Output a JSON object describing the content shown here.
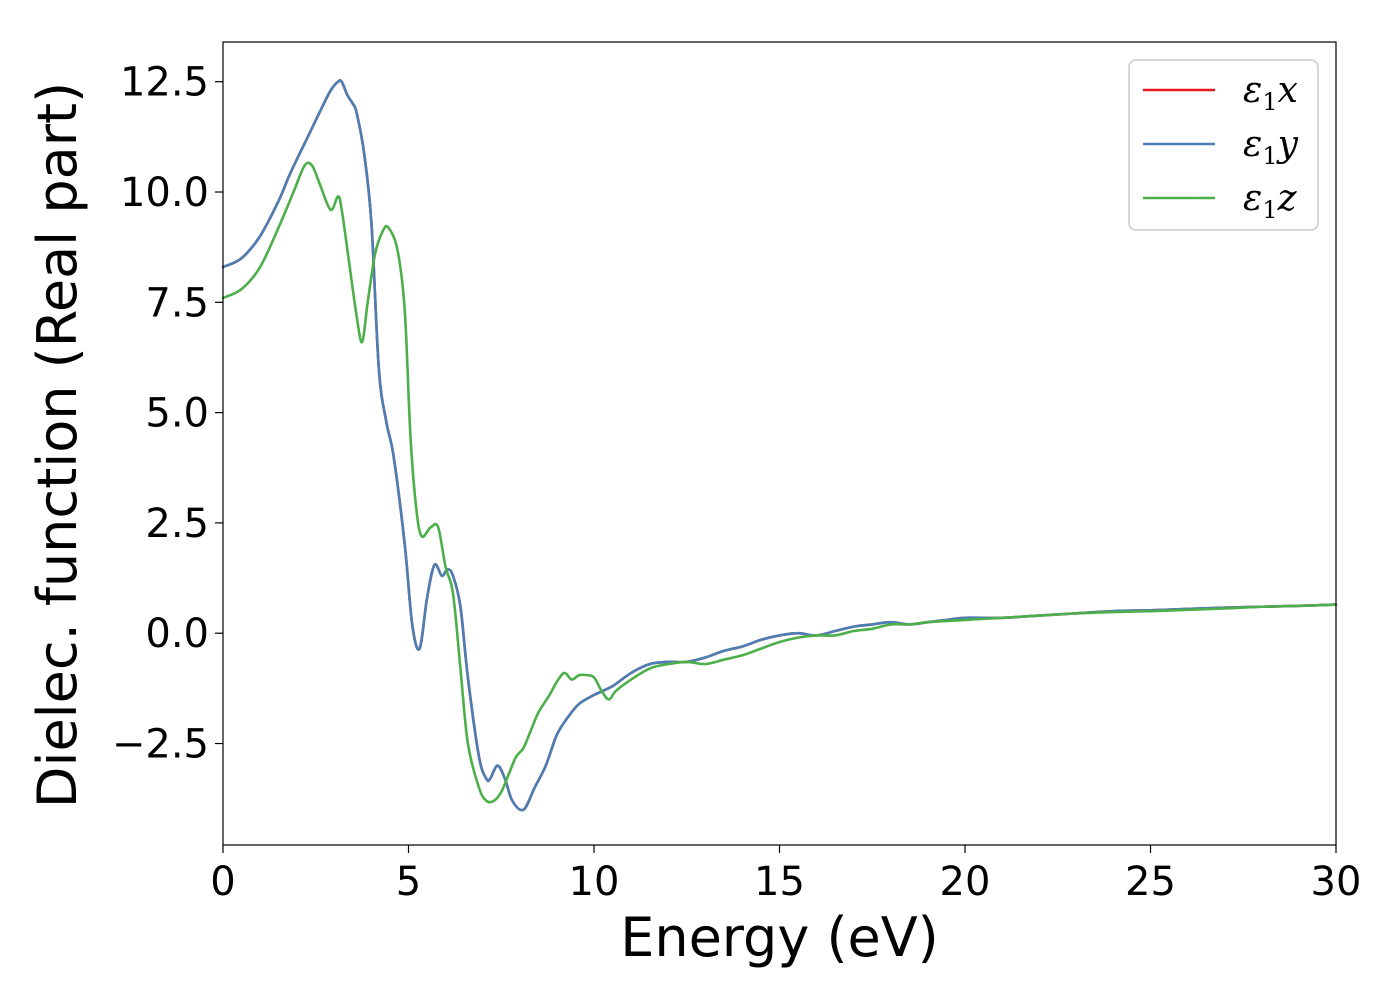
{
  "chart_data": {
    "type": "line",
    "title": "",
    "xlabel": "Energy (eV)",
    "ylabel": "Dielec. function (Real part)",
    "xlim": [
      0,
      30
    ],
    "ylim": [
      -4.8,
      13.4
    ],
    "xticks": [
      0,
      5,
      10,
      15,
      20,
      25,
      30
    ],
    "xtick_labels": [
      "0",
      "5",
      "10",
      "15",
      "20",
      "25",
      "30"
    ],
    "yticks": [
      -2.5,
      0.0,
      2.5,
      5.0,
      7.5,
      10.0,
      12.5
    ],
    "ytick_labels": [
      "−2.5",
      "0.0",
      "2.5",
      "5.0",
      "7.5",
      "10.0",
      "12.5"
    ],
    "grid": false,
    "legend_position": "top-right",
    "series": [
      {
        "name": "ε1x",
        "legend_base": "ε",
        "legend_sub": "1",
        "legend_var": "x",
        "color": "#e41a1c",
        "x": [
          0,
          0.5,
          1.0,
          1.5,
          1.8,
          2.2,
          2.6,
          2.9,
          3.1,
          3.2,
          3.35,
          3.5,
          3.6,
          3.8,
          4.0,
          4.2,
          4.4,
          4.6,
          4.9,
          5.1,
          5.3,
          5.5,
          5.7,
          5.9,
          6.05,
          6.2,
          6.4,
          6.6,
          6.9,
          7.1,
          7.2,
          7.4,
          7.6,
          7.8,
          8.1,
          8.4,
          8.7,
          9.0,
          9.3,
          9.6,
          10.0,
          10.5,
          11.0,
          11.5,
          12.0,
          12.5,
          13.0,
          13.5,
          14.0,
          14.5,
          15.0,
          15.5,
          16.0,
          16.5,
          17.0,
          17.5,
          18.0,
          18.5,
          19.0,
          19.5,
          20.0,
          21.0,
          22.0,
          23.0,
          24.0,
          25.0,
          26.0,
          27.0,
          28.0,
          29.0,
          30.0
        ],
        "y": [
          8.3,
          8.5,
          9.0,
          9.8,
          10.4,
          11.1,
          11.8,
          12.3,
          12.5,
          12.5,
          12.2,
          12.0,
          11.8,
          10.9,
          9.3,
          6.0,
          4.8,
          4.0,
          2.0,
          0.2,
          -0.35,
          0.8,
          1.55,
          1.3,
          1.45,
          1.3,
          0.6,
          -1.0,
          -2.8,
          -3.3,
          -3.3,
          -3.0,
          -3.3,
          -3.8,
          -4.0,
          -3.5,
          -3.0,
          -2.3,
          -1.9,
          -1.6,
          -1.4,
          -1.2,
          -0.9,
          -0.7,
          -0.65,
          -0.65,
          -0.55,
          -0.4,
          -0.3,
          -0.15,
          -0.05,
          0.0,
          -0.05,
          0.05,
          0.15,
          0.2,
          0.25,
          0.2,
          0.25,
          0.3,
          0.35,
          0.35,
          0.4,
          0.45,
          0.5,
          0.52,
          0.55,
          0.58,
          0.6,
          0.62,
          0.65
        ]
      },
      {
        "name": "ε1y",
        "legend_base": "ε",
        "legend_sub": "1",
        "legend_var": "y",
        "color": "#4a7fb5",
        "x": [
          0,
          0.5,
          1.0,
          1.5,
          1.8,
          2.2,
          2.6,
          2.9,
          3.1,
          3.2,
          3.35,
          3.5,
          3.6,
          3.8,
          4.0,
          4.2,
          4.4,
          4.6,
          4.9,
          5.1,
          5.3,
          5.5,
          5.7,
          5.9,
          6.05,
          6.2,
          6.4,
          6.6,
          6.9,
          7.1,
          7.2,
          7.4,
          7.6,
          7.8,
          8.1,
          8.4,
          8.7,
          9.0,
          9.3,
          9.6,
          10.0,
          10.5,
          11.0,
          11.5,
          12.0,
          12.5,
          13.0,
          13.5,
          14.0,
          14.5,
          15.0,
          15.5,
          16.0,
          16.5,
          17.0,
          17.5,
          18.0,
          18.5,
          19.0,
          19.5,
          20.0,
          21.0,
          22.0,
          23.0,
          24.0,
          25.0,
          26.0,
          27.0,
          28.0,
          29.0,
          30.0
        ],
        "y": [
          8.3,
          8.5,
          9.0,
          9.8,
          10.4,
          11.1,
          11.8,
          12.3,
          12.5,
          12.5,
          12.2,
          12.0,
          11.8,
          10.9,
          9.3,
          6.0,
          4.8,
          4.0,
          2.0,
          0.2,
          -0.35,
          0.8,
          1.55,
          1.3,
          1.45,
          1.3,
          0.6,
          -1.0,
          -2.8,
          -3.3,
          -3.3,
          -3.0,
          -3.3,
          -3.8,
          -4.0,
          -3.5,
          -3.0,
          -2.3,
          -1.9,
          -1.6,
          -1.4,
          -1.2,
          -0.9,
          -0.7,
          -0.65,
          -0.65,
          -0.55,
          -0.4,
          -0.3,
          -0.15,
          -0.05,
          0.0,
          -0.05,
          0.05,
          0.15,
          0.2,
          0.25,
          0.2,
          0.25,
          0.3,
          0.35,
          0.35,
          0.4,
          0.45,
          0.5,
          0.52,
          0.55,
          0.58,
          0.6,
          0.62,
          0.65
        ]
      },
      {
        "name": "ε1z",
        "legend_base": "ε",
        "legend_sub": "1",
        "legend_var": "z",
        "color": "#4daf4a",
        "x": [
          0,
          0.5,
          1.0,
          1.5,
          1.9,
          2.2,
          2.4,
          2.6,
          2.9,
          3.1,
          3.2,
          3.4,
          3.6,
          3.75,
          3.9,
          4.1,
          4.3,
          4.45,
          4.7,
          4.9,
          5.05,
          5.2,
          5.35,
          5.6,
          5.8,
          6.0,
          6.2,
          6.4,
          6.6,
          6.9,
          7.1,
          7.3,
          7.5,
          7.7,
          7.9,
          8.1,
          8.3,
          8.5,
          8.8,
          9.0,
          9.2,
          9.4,
          9.6,
          9.8,
          10.0,
          10.2,
          10.4,
          10.6,
          11.0,
          11.5,
          12.0,
          12.5,
          13.0,
          13.5,
          14.0,
          14.5,
          15.0,
          15.5,
          16.0,
          16.5,
          17.0,
          17.5,
          18.0,
          18.5,
          19.0,
          20.0,
          21.0,
          22.0,
          23.0,
          24.0,
          25.0,
          26.0,
          27.0,
          28.0,
          29.0,
          30.0
        ],
        "y": [
          7.6,
          7.8,
          8.3,
          9.2,
          10.0,
          10.6,
          10.6,
          10.2,
          9.6,
          9.9,
          9.6,
          8.4,
          7.2,
          6.6,
          7.5,
          8.6,
          9.1,
          9.2,
          8.7,
          7.3,
          4.5,
          2.9,
          2.2,
          2.4,
          2.4,
          1.5,
          0.9,
          -0.8,
          -2.5,
          -3.5,
          -3.8,
          -3.8,
          -3.6,
          -3.2,
          -2.8,
          -2.6,
          -2.2,
          -1.8,
          -1.4,
          -1.1,
          -0.9,
          -1.05,
          -0.95,
          -0.95,
          -1.0,
          -1.3,
          -1.5,
          -1.3,
          -1.05,
          -0.8,
          -0.7,
          -0.65,
          -0.7,
          -0.6,
          -0.5,
          -0.35,
          -0.2,
          -0.1,
          -0.05,
          -0.05,
          0.05,
          0.1,
          0.2,
          0.2,
          0.25,
          0.3,
          0.35,
          0.4,
          0.45,
          0.48,
          0.5,
          0.53,
          0.56,
          0.6,
          0.62,
          0.65
        ]
      }
    ]
  }
}
